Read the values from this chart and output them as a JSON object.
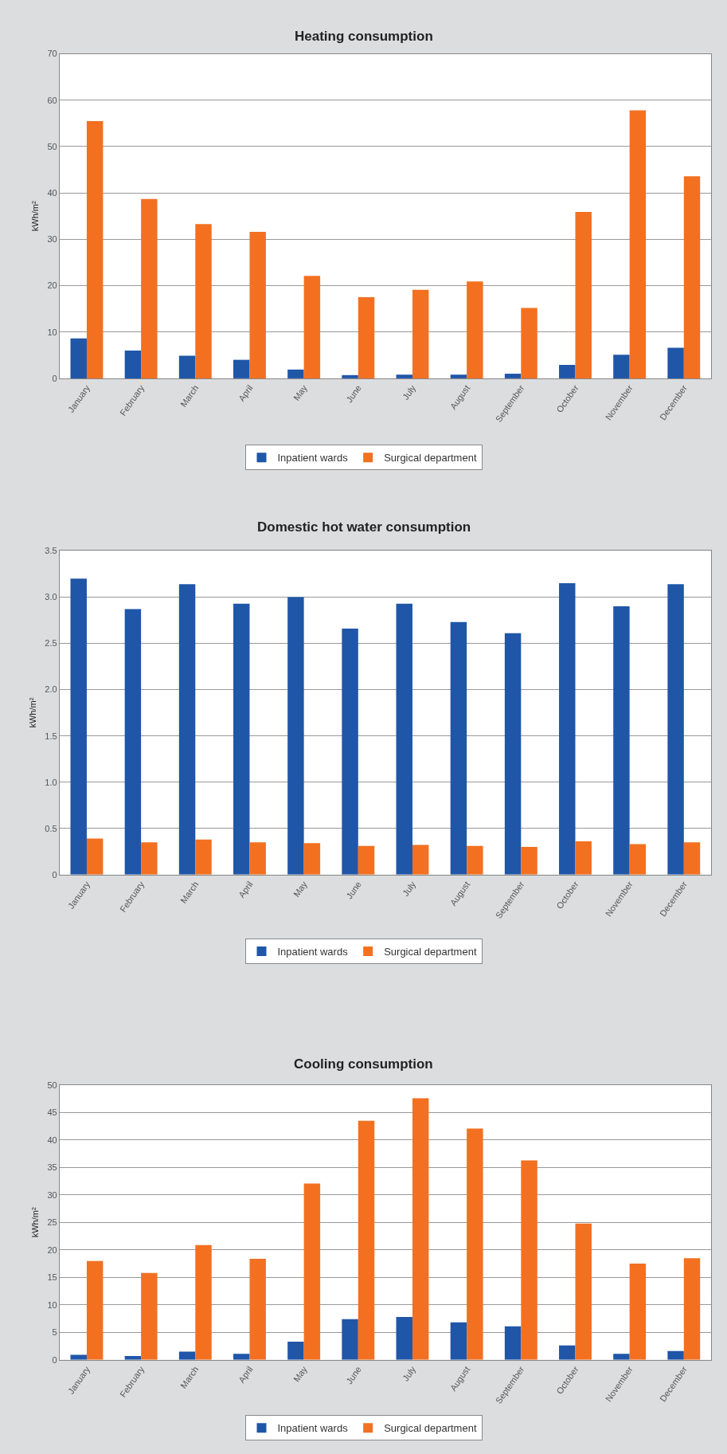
{
  "chart_data": [
    {
      "type": "bar",
      "title": "Heating consumption",
      "ylabel": "kWh/m²",
      "categories": [
        "January",
        "February",
        "March",
        "April",
        "May",
        "June",
        "July",
        "August",
        "September",
        "October",
        "November",
        "December"
      ],
      "series": [
        {
          "name": "Inpatient wards",
          "color": "#1f56a8",
          "values": [
            8.6,
            6,
            4.9,
            4,
            1.9,
            0.7,
            0.8,
            0.8,
            1,
            2.9,
            5.1,
            6.6
          ]
        },
        {
          "name": "Surgical department",
          "color": "#f37021",
          "values": [
            55.5,
            38.7,
            33.3,
            31.6,
            22.1,
            17.5,
            19.1,
            20.9,
            15.2,
            35.9,
            57.8,
            43.6
          ]
        }
      ],
      "ylim": [
        0,
        70
      ],
      "yticks": [
        0,
        10,
        20,
        30,
        40,
        50,
        60,
        70
      ],
      "grid": "y",
      "legend": "bottom"
    },
    {
      "type": "bar",
      "title": "Domestic hot water consumption",
      "ylabel": "kWh/m²",
      "categories": [
        "January",
        "February",
        "March",
        "April",
        "May",
        "June",
        "July",
        "August",
        "September",
        "October",
        "November",
        "December"
      ],
      "series": [
        {
          "name": "Inpatient wards",
          "color": "#1f56a8",
          "values": [
            3.2,
            2.87,
            3.14,
            2.93,
            3.0,
            2.66,
            2.93,
            2.73,
            2.61,
            3.15,
            2.9,
            3.14
          ]
        },
        {
          "name": "Surgical department",
          "color": "#f37021",
          "values": [
            0.39,
            0.35,
            0.38,
            0.35,
            0.34,
            0.31,
            0.32,
            0.31,
            0.3,
            0.36,
            0.33,
            0.35
          ]
        }
      ],
      "ylim": [
        0,
        3.5
      ],
      "yticks": [
        0,
        0.5,
        {
          "value": 1,
          "label": "1.0"
        },
        1.5,
        {
          "value": 2,
          "label": "2.0"
        },
        2.5,
        {
          "value": 3,
          "label": "3.0"
        },
        3.5
      ],
      "grid": "y",
      "legend": "bottom"
    },
    {
      "type": "bar",
      "title": "Cooling consumption",
      "ylabel": "kWh/m²",
      "categories": [
        "January",
        "February",
        "March",
        "April",
        "May",
        "June",
        "July",
        "August",
        "September",
        "October",
        "November",
        "December"
      ],
      "series": [
        {
          "name": "Inpatient wards",
          "color": "#1f56a8",
          "values": [
            0.9,
            0.7,
            1.5,
            1.1,
            3.3,
            7.4,
            7.8,
            6.8,
            6.1,
            2.6,
            1.1,
            1.6
          ]
        },
        {
          "name": "Surgical department",
          "color": "#f37021",
          "values": [
            18,
            15.8,
            20.9,
            18.4,
            32.1,
            43.5,
            47.6,
            42.1,
            36.3,
            24.8,
            17.5,
            18.5
          ]
        }
      ],
      "ylim": [
        0,
        50
      ],
      "yticks": [
        0,
        5,
        10,
        15,
        20,
        25,
        30,
        35,
        40,
        45,
        50
      ],
      "grid": "y",
      "legend": "bottom"
    }
  ]
}
